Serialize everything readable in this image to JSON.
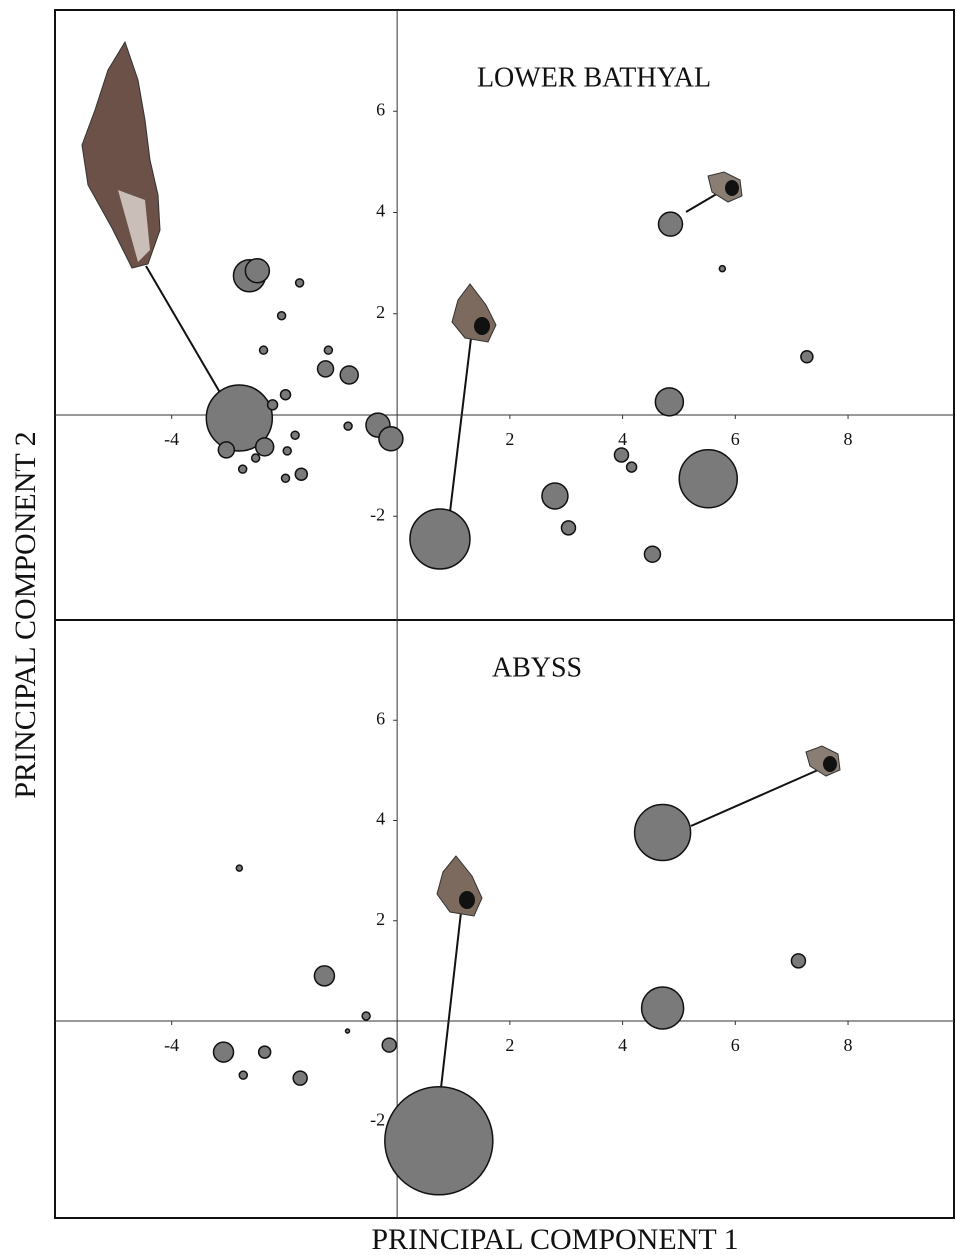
{
  "x_label": "PRINCIPAL COMPONENT 1",
  "y_label": "PRINCIPAL COMPONENT 2",
  "chart_data": [
    {
      "type": "scatter",
      "title": "LOWER BATHYAL",
      "color": "#7a7a7a",
      "x": [
        -2.62,
        -2.48,
        -1.73,
        -2.05,
        -2.37,
        -1.22,
        -1.27,
        -0.85,
        -1.98,
        -2.8,
        -2.21,
        -3.03,
        -2.35,
        -2.51,
        -1.81,
        -1.95,
        -2.74,
        -1.98,
        -1.7,
        -0.87,
        -0.34,
        -0.11,
        0.76,
        2.8,
        3.04,
        3.98,
        4.16,
        4.53,
        5.52,
        4.83,
        4.85,
        5.77,
        7.27
      ],
      "y": [
        2.75,
        2.85,
        2.61,
        1.96,
        1.28,
        1.28,
        0.91,
        0.79,
        0.4,
        -0.06,
        0.2,
        -0.69,
        -0.63,
        -0.85,
        -0.4,
        -0.71,
        -1.07,
        -1.25,
        -1.17,
        -0.22,
        -0.2,
        -0.47,
        -2.45,
        -1.6,
        -2.23,
        -0.79,
        -1.03,
        -2.75,
        -1.26,
        0.26,
        3.77,
        2.89,
        1.15
      ],
      "sizes": [
        16,
        12,
        4,
        4,
        4,
        4,
        8,
        9,
        5,
        33,
        5,
        8,
        9,
        4,
        4,
        4,
        4,
        4,
        6,
        4,
        12,
        12,
        30,
        13,
        7,
        7,
        5,
        8,
        29,
        14,
        12,
        3,
        6
      ],
      "xlim": [
        -6.07,
        9.88
      ],
      "ylim": [
        -4.05,
        8.0
      ],
      "xticks": [
        -4,
        2,
        4,
        6,
        8
      ],
      "yticks": [
        -2,
        2,
        4,
        6
      ]
    },
    {
      "type": "scatter",
      "title": "ABYSS",
      "color": "#7a7a7a",
      "x": [
        -2.8,
        -1.29,
        -0.55,
        -0.88,
        -0.14,
        -3.08,
        -2.35,
        -2.73,
        -1.72,
        0.74,
        4.71,
        4.71,
        7.12
      ],
      "y": [
        3.05,
        0.9,
        0.1,
        -0.2,
        -0.48,
        -0.62,
        -0.62,
        -1.08,
        -1.14,
        -2.39,
        0.26,
        3.76,
        1.2
      ],
      "sizes": [
        3,
        10,
        4,
        2,
        7,
        10,
        6,
        4,
        7,
        54,
        21,
        28,
        7
      ],
      "xlim": [
        -6.07,
        9.88
      ],
      "ylim": [
        -3.93,
        8.0
      ],
      "xticks": [
        -4,
        2,
        4,
        6,
        8
      ],
      "yticks": [
        -2,
        2,
        4,
        6
      ]
    }
  ]
}
